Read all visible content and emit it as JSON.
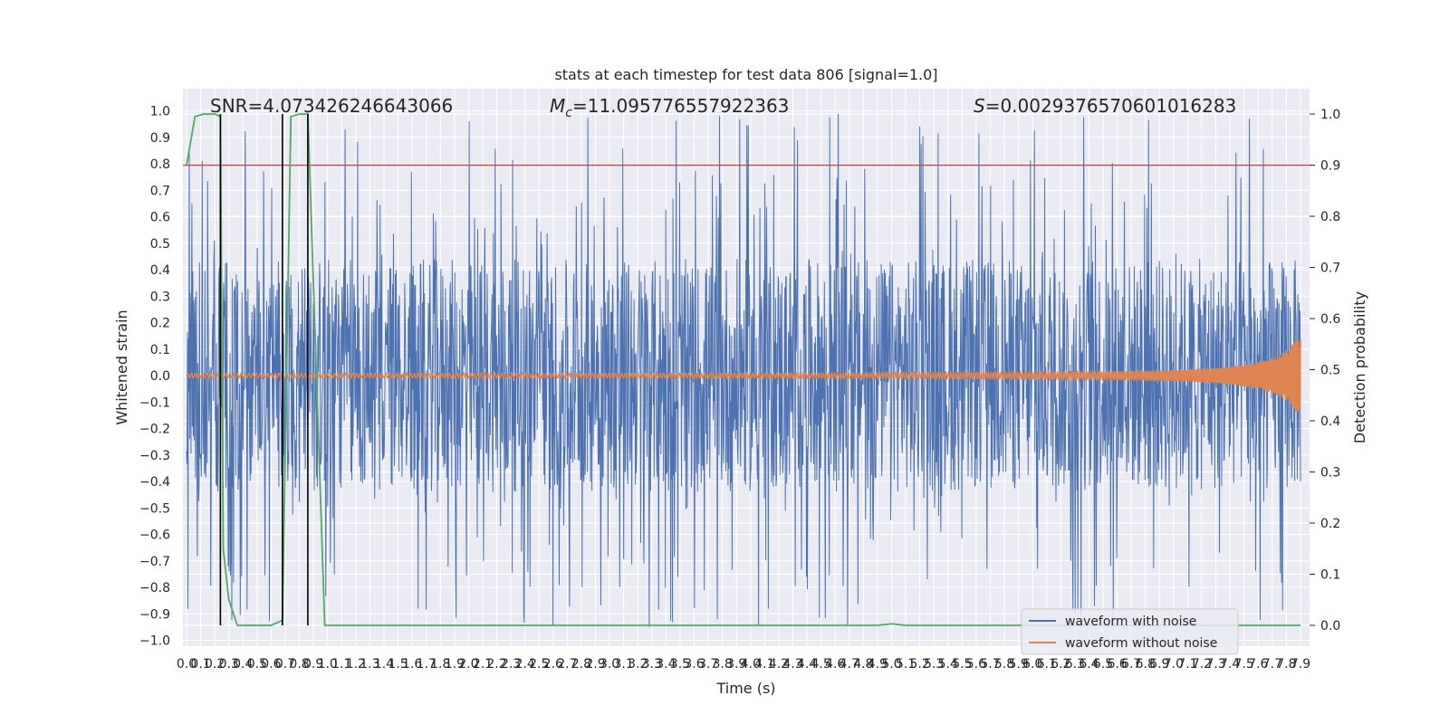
{
  "chart_data": {
    "type": "line",
    "title": "stats at each timestep for test data 806 [signal=1.0]",
    "xlabel": "Time (s)",
    "ylabel": "Whitened strain",
    "ylabel_right": "Detection probability",
    "xlim": [
      0,
      7.9
    ],
    "ylim": [
      -1.05,
      1.05
    ],
    "ylim_right": [
      -0.05,
      1.05
    ],
    "x_ticks": [
      "0.0",
      "0.1",
      "0.2",
      "0.3",
      "0.4",
      "0.5",
      "0.6",
      "0.7",
      "0.8",
      "0.9",
      "1.0",
      "1.1",
      "1.2",
      "1.3",
      "1.4",
      "1.5",
      "1.6",
      "1.7",
      "1.8",
      "1.9",
      "2.0",
      "2.1",
      "2.2",
      "2.3",
      "2.4",
      "2.5",
      "2.6",
      "2.7",
      "2.8",
      "2.9",
      "3.0",
      "3.1",
      "3.2",
      "3.3",
      "3.4",
      "3.5",
      "3.6",
      "3.7",
      "3.8",
      "3.9",
      "4.0",
      "4.1",
      "4.2",
      "4.3",
      "4.4",
      "4.5",
      "4.6",
      "4.7",
      "4.8",
      "4.9",
      "5.0",
      "5.1",
      "5.2",
      "5.3",
      "5.4",
      "5.5",
      "5.6",
      "5.7",
      "5.8",
      "5.9",
      "6.0",
      "6.1",
      "6.2",
      "6.3",
      "6.4",
      "6.5",
      "6.6",
      "6.7",
      "6.8",
      "6.9",
      "7.0",
      "7.1",
      "7.2",
      "7.3",
      "7.4",
      "7.5",
      "7.6",
      "7.7",
      "7.8",
      "7.9"
    ],
    "y_ticks": [
      "1.0",
      "0.9",
      "0.8",
      "0.7",
      "0.6",
      "0.5",
      "0.4",
      "0.3",
      "0.2",
      "0.1",
      "0.0",
      "−0.1",
      "−0.2",
      "−0.3",
      "−0.4",
      "−0.5",
      "−0.6",
      "−0.7",
      "−0.8",
      "−0.9",
      "−1.0"
    ],
    "y_ticks_right": [
      "1.0",
      "0.9",
      "0.8",
      "0.7",
      "0.6",
      "0.5",
      "0.4",
      "0.3",
      "0.2",
      "0.1",
      "0.0"
    ],
    "annotations": {
      "snr": "SNR=4.073426246643066",
      "mc_prefix": "M",
      "mc_sub": "c",
      "mc_value": "=11.095776557922363",
      "s_prefix": "S",
      "s_value": "=0.0029376570601016283"
    },
    "threshold": {
      "value": 0.9,
      "axis": "right",
      "color": "#c44e52"
    },
    "vlines": [
      0.24,
      0.68,
      0.86
    ],
    "legend": {
      "placement": "lower right",
      "entries": [
        "waveform with noise",
        "waveform without noise"
      ]
    },
    "grid": true,
    "series": [
      {
        "name": "waveform with noise",
        "axis": "left",
        "color": "#4c72b0",
        "envelope_hint": {
          "core_band": [
            -0.42,
            0.42
          ],
          "peak_max": 1.0,
          "peak_min": -0.95
        }
      },
      {
        "name": "waveform without noise",
        "axis": "left",
        "color": "#dd8452",
        "envelope_hint": {
          "start_amplitude": 0.008,
          "end_amplitude": 0.16,
          "end_time": 7.9
        }
      },
      {
        "name": "",
        "axis": "right",
        "color": "#55a868",
        "x": [
          0.0,
          0.06,
          0.12,
          0.2,
          0.24,
          0.26,
          0.3,
          0.36,
          0.6,
          0.68,
          0.71,
          0.74,
          0.8,
          0.86,
          0.92,
          0.98,
          4.9,
          5.0,
          5.1,
          7.9
        ],
        "y": [
          0.9,
          0.995,
          1.0,
          1.0,
          0.995,
          0.15,
          0.05,
          0.0,
          0.0,
          0.01,
          0.5,
          0.995,
          1.0,
          1.0,
          0.5,
          0.0,
          0.0,
          0.003,
          0.0,
          0.0
        ]
      }
    ]
  }
}
